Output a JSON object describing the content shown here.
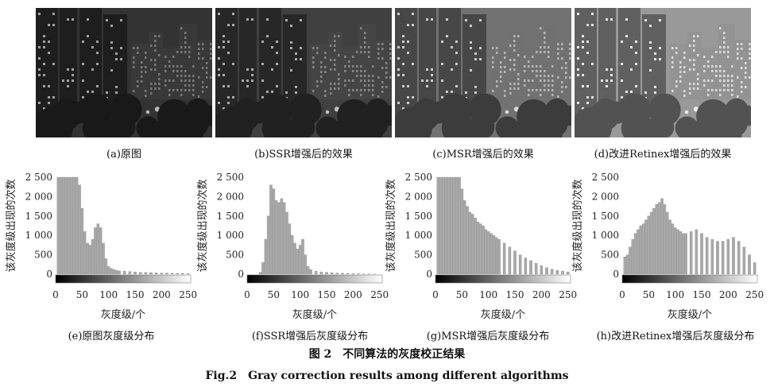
{
  "photos": [
    {
      "caption": "(a)原图",
      "brightness": 0.18
    },
    {
      "caption": "(b)SSR增强后的效果",
      "brightness": 0.26
    },
    {
      "caption": "(c)MSR增强后的效果",
      "brightness": 0.55
    },
    {
      "caption": "(d)改进Retinex增强后的效果",
      "brightness": 0.78
    }
  ],
  "chart_data": [
    {
      "type": "bar",
      "title": "(e)原图灰度级分布",
      "xlabel": "灰度级/个",
      "ylabel": "该灰度级出现的次数",
      "xlim": [
        0,
        255
      ],
      "ylim": [
        0,
        2500
      ],
      "xticks": [
        "0",
        "50",
        "100",
        "150",
        "200",
        "250"
      ],
      "yticks": [
        "0",
        "500",
        "1 000",
        "1 500",
        "2 000",
        "2 500"
      ],
      "x": [
        5,
        10,
        15,
        20,
        25,
        30,
        35,
        40,
        45,
        50,
        55,
        60,
        65,
        70,
        75,
        80,
        85,
        90,
        95,
        100,
        105,
        110,
        115,
        120,
        130,
        140,
        150,
        160,
        170,
        180,
        190,
        200,
        210,
        220,
        230,
        240,
        250
      ],
      "values": [
        2500,
        2500,
        2500,
        2500,
        2500,
        2500,
        2500,
        2500,
        2300,
        1700,
        1100,
        800,
        750,
        900,
        1200,
        1300,
        1200,
        800,
        400,
        200,
        150,
        120,
        100,
        90,
        80,
        70,
        60,
        50,
        45,
        40,
        35,
        30,
        30,
        25,
        20,
        20,
        15
      ]
    },
    {
      "type": "bar",
      "title": "(f)SSR增强后灰度级分布",
      "xlabel": "灰度级/个",
      "ylabel": "该灰度级出现的次数",
      "xlim": [
        0,
        255
      ],
      "ylim": [
        0,
        2500
      ],
      "xticks": [
        "0",
        "50",
        "100",
        "150",
        "200",
        "250"
      ],
      "yticks": [
        "0",
        "500",
        "1 000",
        "1 500",
        "2 000",
        "2 500"
      ],
      "x": [
        5,
        10,
        15,
        20,
        25,
        30,
        35,
        40,
        45,
        50,
        55,
        60,
        65,
        70,
        75,
        80,
        85,
        90,
        95,
        100,
        105,
        110,
        115,
        120,
        130,
        140,
        150,
        160,
        170,
        180,
        190,
        200,
        210,
        220,
        230,
        240,
        250
      ],
      "values": [
        0,
        0,
        0,
        0,
        50,
        300,
        900,
        1500,
        2300,
        2200,
        1900,
        1850,
        1950,
        1850,
        1600,
        1300,
        1000,
        800,
        650,
        750,
        900,
        500,
        200,
        120,
        80,
        60,
        50,
        40,
        30,
        25,
        20,
        15,
        10,
        8,
        5,
        3,
        0
      ]
    },
    {
      "type": "bar",
      "title": "(g)MSR增强后灰度级分布",
      "xlabel": "灰度级/个",
      "ylabel": "该灰度级出现的次数",
      "xlim": [
        0,
        255
      ],
      "ylim": [
        0,
        2500
      ],
      "xticks": [
        "0",
        "50",
        "100",
        "150",
        "200",
        "250"
      ],
      "yticks": [
        "0",
        "500",
        "1 000",
        "1 500",
        "2 000",
        "2 500"
      ],
      "x": [
        5,
        10,
        15,
        20,
        25,
        30,
        35,
        40,
        45,
        50,
        55,
        60,
        65,
        70,
        75,
        80,
        85,
        90,
        95,
        100,
        105,
        110,
        115,
        120,
        130,
        140,
        150,
        160,
        170,
        180,
        190,
        200,
        210,
        220,
        230,
        240,
        250
      ],
      "values": [
        2500,
        2500,
        2500,
        2500,
        2500,
        2500,
        2500,
        2500,
        2500,
        2200,
        1900,
        1750,
        1600,
        1550,
        1450,
        1350,
        1300,
        1250,
        1150,
        1100,
        1050,
        1000,
        950,
        900,
        800,
        700,
        600,
        500,
        420,
        350,
        280,
        220,
        170,
        130,
        100,
        80,
        60
      ]
    },
    {
      "type": "bar",
      "title": "(h)改进Retinex增强后灰度级分布",
      "xlabel": "灰度级/个",
      "ylabel": "该灰度级出现的次数",
      "xlim": [
        0,
        255
      ],
      "ylim": [
        0,
        2500
      ],
      "xticks": [
        "0",
        "50",
        "100",
        "150",
        "200",
        "250"
      ],
      "yticks": [
        "0",
        "500",
        "1 000",
        "1 500",
        "2 000",
        "2 500"
      ],
      "x": [
        5,
        10,
        15,
        20,
        25,
        30,
        35,
        40,
        45,
        50,
        55,
        60,
        65,
        70,
        75,
        80,
        85,
        90,
        95,
        100,
        105,
        110,
        115,
        120,
        130,
        140,
        150,
        160,
        170,
        180,
        190,
        200,
        210,
        220,
        230,
        240,
        250
      ],
      "values": [
        450,
        500,
        700,
        900,
        1050,
        1150,
        1250,
        1300,
        1400,
        1500,
        1600,
        1700,
        1800,
        1850,
        1950,
        1800,
        1600,
        1400,
        1300,
        1200,
        1150,
        1100,
        1050,
        1050,
        1100,
        1150,
        1050,
        950,
        900,
        850,
        850,
        900,
        950,
        850,
        700,
        500,
        300
      ]
    }
  ],
  "figure": {
    "title_cn": "图 2　不同算法的灰度校正结果",
    "title_en": "Fig.2　Gray correction results among different algorithms"
  }
}
